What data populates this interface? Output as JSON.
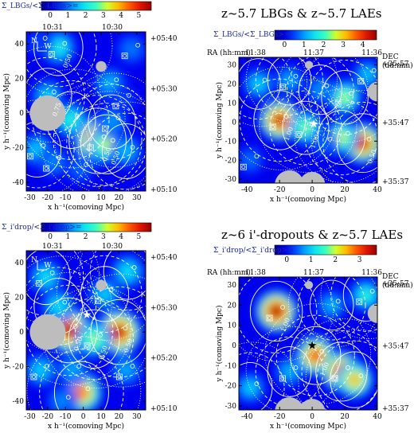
{
  "chart_data": [
    {
      "type": "heatmap",
      "panel": "top-left",
      "colorbar": {
        "label": "Σ_LBGs/<Σ_LBGs>=",
        "ticks": [
          "0",
          "1",
          "2",
          "3",
          "4",
          "5"
        ],
        "range": [
          0,
          5
        ]
      },
      "ra_ticks": [
        "10:31",
        "10:30"
      ],
      "dec_ticks": [
        "+05:40",
        "+05:30",
        "+05:20",
        "+05:10"
      ],
      "xlabel": "x h⁻¹(comoving Mpc)",
      "ylabel": "y h⁻¹(comoving Mpc)",
      "xticks": [
        -30,
        -20,
        -10,
        0,
        10,
        20,
        30
      ],
      "yticks": [
        -40,
        -20,
        0,
        20,
        40
      ],
      "xlim": [
        -32,
        35
      ],
      "ylim": [
        -45,
        47
      ],
      "contour_labels": [
        "0.50",
        "0.50",
        "0.50",
        "0.75"
      ],
      "compass": [
        "N",
        "W"
      ],
      "blobs": [
        {
          "x": 8,
          "y": -16,
          "v": 5.0
        },
        {
          "x": 13,
          "y": -18,
          "v": 3.0
        },
        {
          "x": -14,
          "y": 38,
          "v": 2.2
        },
        {
          "x": -20,
          "y": 10,
          "v": 1.8
        },
        {
          "x": 16,
          "y": -5,
          "v": 1.5
        },
        {
          "x": -7,
          "y": -4,
          "v": 2.3
        },
        {
          "x": -26,
          "y": -21,
          "v": 1.8
        },
        {
          "x": 24,
          "y": -22,
          "v": 1.7
        },
        {
          "x": -17,
          "y": -28,
          "v": 1.4
        },
        {
          "x": 15,
          "y": 17,
          "v": 1.7
        },
        {
          "x": 27,
          "y": 37,
          "v": 1.3
        },
        {
          "x": -25,
          "y": 41,
          "v": 1.0
        },
        {
          "x": 22,
          "y": 8,
          "v": 1.0
        },
        {
          "x": -2,
          "y": -32,
          "v": 1.2
        }
      ],
      "masks": [
        {
          "x": -20,
          "y": 0,
          "r": 10
        },
        {
          "x": 10,
          "y": 27,
          "r": 3
        }
      ]
    },
    {
      "type": "heatmap",
      "panel": "top-right",
      "title": "z~5.7 LBGs & z~5.7 LAEs",
      "colorbar": {
        "label": "Σ_LBGs/<Σ_LBGs>=",
        "ticks": [
          "0",
          "1",
          "2",
          "3",
          "4"
        ],
        "range": [
          0,
          4
        ]
      },
      "ra_label": "RA (hh:mm)",
      "ra_ticks": [
        "11:38",
        "11:37",
        "11:36"
      ],
      "dec_label": "DEC (dd:mm)",
      "dec_ticks": [
        "+35:57",
        "+35:47",
        "+35:37"
      ],
      "xlabel": "x h⁻¹(comoving Mpc)",
      "ylabel": "y h⁻¹(comoving Mpc)",
      "xticks": [
        -40,
        -20,
        0,
        20,
        40
      ],
      "yticks": [
        -30,
        -20,
        -10,
        0,
        10,
        20,
        30
      ],
      "xlim": [
        -45,
        40
      ],
      "ylim": [
        -32,
        34
      ],
      "contour_labels": [
        "1.00",
        "0.50",
        "1.00"
      ],
      "blobs": [
        {
          "x": -20,
          "y": 1,
          "v": 3.8
        },
        {
          "x": 31,
          "y": -11,
          "v": 3.7
        },
        {
          "x": -4,
          "y": -3,
          "v": 2.2
        },
        {
          "x": 18,
          "y": -8,
          "v": 2.4
        },
        {
          "x": 20,
          "y": 13,
          "v": 2.3
        },
        {
          "x": -33,
          "y": 20,
          "v": 1.5
        },
        {
          "x": -14,
          "y": 22,
          "v": 1.3
        },
        {
          "x": 5,
          "y": 17,
          "v": 1.2
        },
        {
          "x": 34,
          "y": 25,
          "v": 1.4
        },
        {
          "x": 7,
          "y": -11,
          "v": 1.0
        },
        {
          "x": -38,
          "y": -20,
          "v": 1.0
        }
      ],
      "masks": [
        {
          "x": -14,
          "y": -33,
          "r": 9
        },
        {
          "x": 0,
          "y": -33,
          "r": 8
        },
        {
          "x": 40,
          "y": 16,
          "r": 6
        },
        {
          "x": -2,
          "y": 30,
          "r": 2.5
        }
      ],
      "star": {
        "x": 1,
        "y": -1
      }
    },
    {
      "type": "heatmap",
      "panel": "bottom-left",
      "colorbar": {
        "label": "Σ_i'drop/<Σ_i'drop>=",
        "ticks": [
          "0",
          "1",
          "2",
          "3",
          "4",
          "5"
        ],
        "range": [
          0,
          5
        ]
      },
      "ra_ticks": [
        "10:31",
        "10:30"
      ],
      "dec_ticks": [
        "+05:40",
        "+05:30",
        "+05:20",
        "+05:10"
      ],
      "xlabel": "x h⁻¹(comoving Mpc)",
      "ylabel": "y h⁻¹(comoving Mpc)",
      "xticks": [
        -30,
        -20,
        -10,
        0,
        10,
        20,
        30
      ],
      "yticks": [
        -40,
        -20,
        0,
        20,
        40
      ],
      "xlim": [
        -32,
        35
      ],
      "ylim": [
        -45,
        47
      ],
      "contour_labels": [
        "0.50",
        "0.50",
        "0.50"
      ],
      "compass": [
        "N",
        "W"
      ],
      "blobs": [
        {
          "x": -8,
          "y": 1,
          "v": 4.8
        },
        {
          "x": 20,
          "y": 0,
          "v": 4.8
        },
        {
          "x": 6,
          "y": -4,
          "v": 2.8
        },
        {
          "x": -1,
          "y": -35,
          "v": 4.0
        },
        {
          "x": -21,
          "y": 32,
          "v": 2.0
        },
        {
          "x": -14,
          "y": 15,
          "v": 2.0
        },
        {
          "x": 12,
          "y": 22,
          "v": 1.8
        },
        {
          "x": 25,
          "y": 35,
          "v": 2.0
        },
        {
          "x": -24,
          "y": -22,
          "v": 1.8
        },
        {
          "x": -6,
          "y": -22,
          "v": 1.6
        },
        {
          "x": 24,
          "y": -22,
          "v": 1.6
        },
        {
          "x": -12,
          "y": -40,
          "v": 1.4
        }
      ],
      "masks": [
        {
          "x": -20,
          "y": 0,
          "r": 10
        },
        {
          "x": 10,
          "y": 27,
          "r": 3
        }
      ],
      "star": {
        "x": 2,
        "y": 10
      }
    },
    {
      "type": "heatmap",
      "panel": "bottom-right",
      "title": "z~6 i'-dropouts & z~5.7 LAEs",
      "colorbar": {
        "label": "Σ_i'drop/<Σ_i'drop>=",
        "ticks": [
          "0",
          "1",
          "2",
          "3"
        ],
        "range": [
          0,
          3
        ]
      },
      "ra_label": "RA (hh:mm)",
      "ra_ticks": [
        "11:38",
        "11:37",
        "11:36"
      ],
      "dec_label": "DEC (dd:mm)",
      "dec_ticks": [
        "+35:57",
        "+35:47",
        "+35:37"
      ],
      "xlabel": "x h⁻¹(comoving Mpc)",
      "ylabel": "y h⁻¹(comoving Mpc)",
      "xticks": [
        -40,
        -20,
        0,
        20,
        40
      ],
      "yticks": [
        -30,
        -20,
        -10,
        0,
        10,
        20,
        30
      ],
      "xlim": [
        -45,
        40
      ],
      "ylim": [
        -32,
        34
      ],
      "contour_labels": [
        "1.00",
        "1.00"
      ],
      "blobs": [
        {
          "x": -22,
          "y": 17,
          "v": 3.0
        },
        {
          "x": 2,
          "y": -5,
          "v": 2.6
        },
        {
          "x": 18,
          "y": -13,
          "v": 2.8
        },
        {
          "x": 26,
          "y": -17,
          "v": 2.2
        },
        {
          "x": 33,
          "y": 25,
          "v": 1.4
        },
        {
          "x": -38,
          "y": -21,
          "v": 1.1
        },
        {
          "x": -14,
          "y": -13,
          "v": 1.0
        },
        {
          "x": 12,
          "y": 20,
          "v": 1.0
        }
      ],
      "masks": [
        {
          "x": -14,
          "y": -33,
          "r": 9
        },
        {
          "x": 0,
          "y": -33,
          "r": 8
        },
        {
          "x": 40,
          "y": 16,
          "r": 6
        },
        {
          "x": -2,
          "y": 30,
          "r": 2.5
        }
      ],
      "star": {
        "x": 0,
        "y": 0
      }
    }
  ]
}
